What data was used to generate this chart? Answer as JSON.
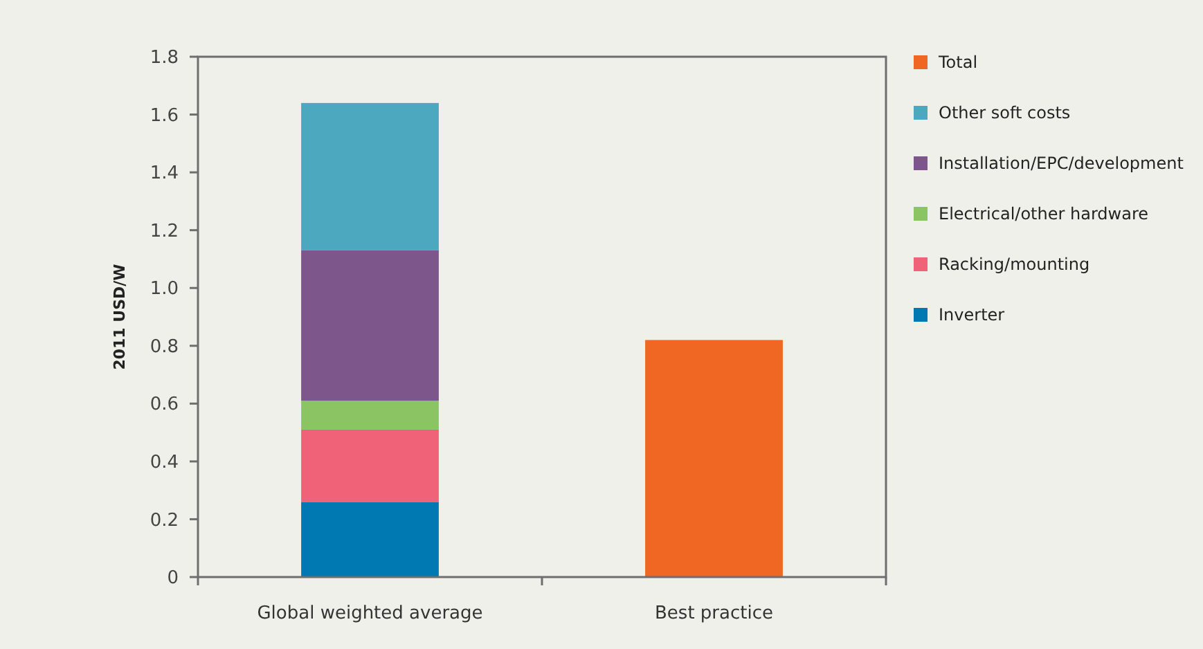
{
  "chart_data": {
    "type": "bar",
    "stacked": true,
    "ylabel": "2011 USD/W",
    "categories": [
      "Global weighted average",
      "Best practice"
    ],
    "series": [
      {
        "name": "Inverter",
        "color": "#0079b3",
        "values": [
          0.26,
          null
        ]
      },
      {
        "name": "Racking/mounting",
        "color": "#f06278",
        "values": [
          0.25,
          null
        ]
      },
      {
        "name": "Electrical/other hardware",
        "color": "#8bc462",
        "values": [
          0.1,
          null
        ]
      },
      {
        "name": "Installation/EPC/development",
        "color": "#7d578b",
        "values": [
          0.52,
          null
        ]
      },
      {
        "name": "Other soft costs",
        "color": "#4ca8be",
        "values": [
          0.51,
          null
        ]
      },
      {
        "name": "Total",
        "color": "#f06723",
        "values": [
          null,
          0.82
        ]
      }
    ],
    "ylim": [
      0,
      1.8
    ],
    "yticks": [
      0,
      {
        "value": 0.2,
        "label": "0.2"
      },
      {
        "value": 0.4,
        "label": "0.4"
      },
      {
        "value": 0.6,
        "label": "0.6"
      },
      {
        "value": 0.8,
        "label": "0.8"
      },
      {
        "value": 1.0,
        "label": "1.0"
      },
      {
        "value": 1.2,
        "label": "1.2"
      },
      {
        "value": 1.4,
        "label": "1.4"
      },
      {
        "value": 1.6,
        "label": "1.6"
      },
      {
        "value": 1.8,
        "label": "1.8"
      }
    ],
    "grid": false,
    "legend": "right"
  }
}
